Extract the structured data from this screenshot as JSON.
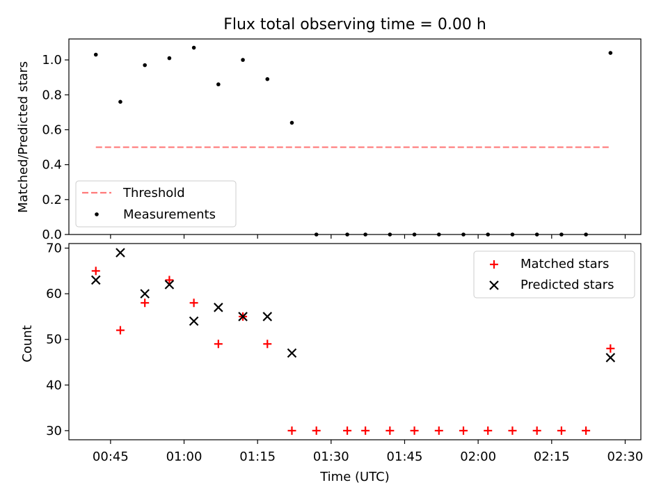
{
  "chart_data": [
    {
      "type": "scatter",
      "title": "Flux total observing time = 0.00 h",
      "xlabel": "",
      "ylabel": "Matched/Predicted stars",
      "ylim": [
        0,
        1.12
      ],
      "yticks": [
        "0.0",
        "0.2",
        "0.4",
        "0.6",
        "0.8",
        "1.0"
      ],
      "legend": {
        "placement": "lower-left",
        "entries": [
          "Threshold",
          "Measurements"
        ]
      },
      "series": [
        {
          "name": "Threshold",
          "kind": "dashed-line",
          "color": "#ff7a7a",
          "points": [
            [
              "00:42",
              0.5
            ],
            [
              "02:27",
              0.5
            ]
          ]
        },
        {
          "name": "Measurements",
          "kind": "dot",
          "color": "#000000",
          "points": [
            [
              "00:42",
              1.03
            ],
            [
              "00:47",
              0.76
            ],
            [
              "00:52",
              0.97
            ],
            [
              "00:57",
              1.01
            ],
            [
              "01:02",
              1.07
            ],
            [
              "01:07",
              0.86
            ],
            [
              "01:12",
              1.0
            ],
            [
              "01:17",
              0.89
            ],
            [
              "01:22",
              0.64
            ],
            [
              "01:27",
              0.0
            ],
            [
              "01:33.3",
              0.0
            ],
            [
              "01:37",
              0.0
            ],
            [
              "01:42",
              0.0
            ],
            [
              "01:47",
              0.0
            ],
            [
              "01:52",
              0.0
            ],
            [
              "01:57",
              0.0
            ],
            [
              "02:02",
              0.0
            ],
            [
              "02:07",
              0.0
            ],
            [
              "02:12",
              0.0
            ],
            [
              "02:17",
              0.0
            ],
            [
              "02:22",
              0.0
            ],
            [
              "02:27",
              1.04
            ]
          ]
        }
      ]
    },
    {
      "type": "scatter",
      "title": "",
      "xlabel": "Time (UTC)",
      "ylabel": "Count",
      "ylim": [
        28,
        71
      ],
      "yticks": [
        "30",
        "40",
        "50",
        "60",
        "70"
      ],
      "xticks": [
        "00:45",
        "01:00",
        "01:15",
        "01:30",
        "01:45",
        "02:00",
        "02:15",
        "02:30"
      ],
      "legend": {
        "placement": "upper-right",
        "entries": [
          "Matched stars",
          "Predicted stars"
        ]
      },
      "series": [
        {
          "name": "Matched stars",
          "marker": "plus",
          "color": "#ff0000",
          "points": [
            [
              "00:42",
              65
            ],
            [
              "00:47",
              52
            ],
            [
              "00:52",
              58
            ],
            [
              "00:57",
              63
            ],
            [
              "01:02",
              58
            ],
            [
              "01:07",
              49
            ],
            [
              "01:12",
              55
            ],
            [
              "01:17",
              49
            ],
            [
              "01:22",
              30
            ],
            [
              "01:27",
              30
            ],
            [
              "01:33.3",
              30
            ],
            [
              "01:37",
              30
            ],
            [
              "01:42",
              30
            ],
            [
              "01:47",
              30
            ],
            [
              "01:52",
              30
            ],
            [
              "01:57",
              30
            ],
            [
              "02:02",
              30
            ],
            [
              "02:07",
              30
            ],
            [
              "02:12",
              30
            ],
            [
              "02:17",
              30
            ],
            [
              "02:22",
              30
            ],
            [
              "02:27",
              48
            ]
          ]
        },
        {
          "name": "Predicted stars",
          "marker": "x",
          "color": "#000000",
          "points": [
            [
              "00:42",
              63
            ],
            [
              "00:47",
              69
            ],
            [
              "00:52",
              60
            ],
            [
              "00:57",
              62
            ],
            [
              "01:02",
              54
            ],
            [
              "01:07",
              57
            ],
            [
              "01:12",
              55
            ],
            [
              "01:17",
              55
            ],
            [
              "01:22",
              47
            ],
            [
              "02:27",
              46
            ]
          ]
        }
      ]
    }
  ]
}
